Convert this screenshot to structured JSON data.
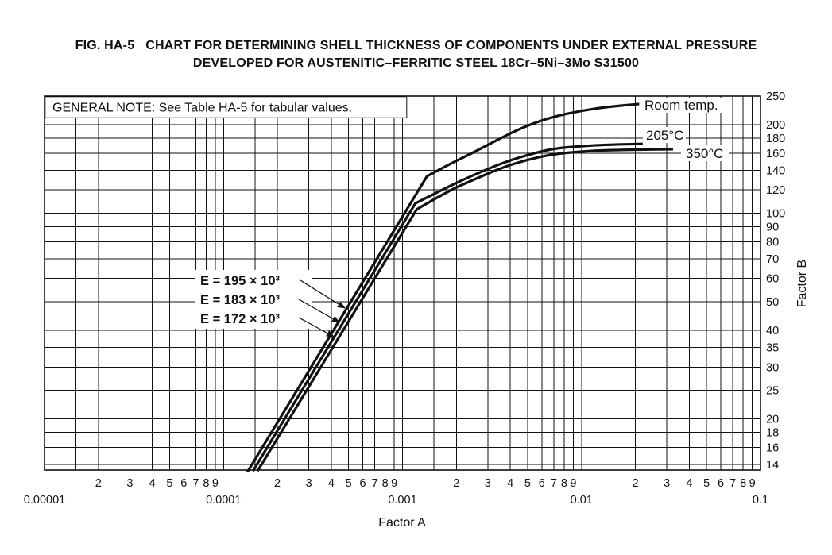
{
  "title": {
    "line1": "FIG. HA-5   CHART FOR DETERMINING SHELL THICKNESS OF COMPONENTS UNDER EXTERNAL PRESSURE",
    "line2": "DEVELOPED FOR AUSTENITIC–FERRITIC STEEL 18Cr–5Ni–3Mo S31500"
  },
  "general_note": "GENERAL NOTE: See Table HA-5 for tabular values.",
  "colors": {
    "ink": "#111111",
    "background": "#ffffff"
  },
  "chart_data": {
    "type": "line",
    "xlabel": "Factor A",
    "ylabel": "Factor B",
    "x_axis": {
      "scale": "log",
      "min": 1e-05,
      "max": 0.1,
      "decades": [
        {
          "label": "0.00001",
          "value": 1e-05
        },
        {
          "label": "0.0001",
          "value": 0.0001
        },
        {
          "label": "0.001",
          "value": 0.001
        },
        {
          "label": "0.01",
          "value": 0.01
        },
        {
          "label": "0.1",
          "value": 0.1
        }
      ],
      "minor_labels": [
        "2",
        "3",
        "4",
        "5",
        "6",
        "7",
        "8",
        "9"
      ],
      "minor_gridlines": [
        1,
        1.5,
        2,
        3,
        4,
        5,
        6,
        7,
        8,
        9
      ]
    },
    "y_axis": {
      "scale": "log",
      "min": 14,
      "max": 250,
      "ticks": [
        250,
        200,
        180,
        160,
        140,
        120,
        100,
        90,
        80,
        70,
        60,
        50,
        40,
        35,
        30,
        25,
        20,
        18,
        16,
        14
      ]
    },
    "series": [
      {
        "name": "Room temp.",
        "modulus_label": "E = 195 × 10³",
        "points": [
          [
            0.000136,
            13.2
          ],
          [
            0.00137,
            133.5
          ],
          [
            0.0018,
            146
          ],
          [
            0.0025,
            161
          ],
          [
            0.0036,
            181
          ],
          [
            0.005,
            199
          ],
          [
            0.007,
            213
          ],
          [
            0.01,
            223
          ],
          [
            0.014,
            230
          ],
          [
            0.021,
            235
          ]
        ]
      },
      {
        "name": "205°C",
        "modulus_label": "E = 183 × 10³",
        "points": [
          [
            0.000146,
            13.3
          ],
          [
            0.00118,
            108
          ],
          [
            0.0018,
            123
          ],
          [
            0.0025,
            135
          ],
          [
            0.0036,
            148
          ],
          [
            0.005,
            158
          ],
          [
            0.007,
            166
          ],
          [
            0.01,
            169
          ],
          [
            0.014,
            171
          ],
          [
            0.022,
            172
          ]
        ]
      },
      {
        "name": "350°C",
        "modulus_label": "E = 172 × 10³",
        "points": [
          [
            0.000155,
            13.3
          ],
          [
            0.0012,
            103
          ],
          [
            0.0018,
            119
          ],
          [
            0.0025,
            130
          ],
          [
            0.0036,
            143
          ],
          [
            0.005,
            152
          ],
          [
            0.007,
            159
          ],
          [
            0.01,
            162
          ],
          [
            0.014,
            164
          ],
          [
            0.0325,
            165
          ]
        ]
      }
    ],
    "legend_position": "curve-end-labels",
    "grid": true
  }
}
